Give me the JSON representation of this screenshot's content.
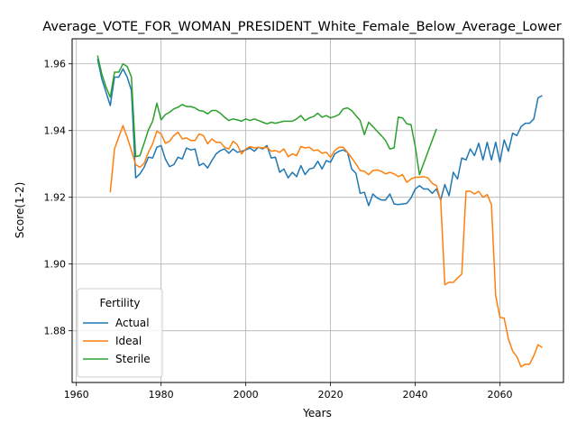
{
  "chart_data": {
    "type": "line",
    "title": "Average_VOTE_FOR_WOMAN_PRESIDENT_White_Female_Below_Average_Lower",
    "xlabel": "Years",
    "ylabel": "Score(1-2)",
    "xlim": [
      1959,
      2075
    ],
    "ylim": [
      1.8645,
      1.9675
    ],
    "x_ticks": [
      1960,
      1980,
      2000,
      2020,
      2040,
      2060
    ],
    "y_ticks": [
      1.88,
      1.9,
      1.92,
      1.94,
      1.96
    ],
    "y_tick_labels": [
      "1.88",
      "1.90",
      "1.92",
      "1.94",
      "1.96"
    ],
    "grid": true,
    "legend": {
      "title": "Fertility",
      "placement": "lower-left"
    },
    "series": [
      {
        "name": "Actual",
        "color": "#1f77b4",
        "points": [
          [
            1965,
            1.9615
          ],
          [
            1966,
            1.9555
          ],
          [
            1967,
            1.9515
          ],
          [
            1968,
            1.9475
          ],
          [
            1969,
            1.956
          ],
          [
            1970,
            1.956
          ],
          [
            1971,
            1.9585
          ],
          [
            1972,
            1.956
          ],
          [
            1973,
            1.952
          ],
          [
            1974,
            1.9258
          ],
          [
            1975,
            1.927
          ],
          [
            1976,
            1.929
          ],
          [
            1977,
            1.932
          ],
          [
            1978,
            1.9318
          ],
          [
            1979,
            1.935
          ],
          [
            1980,
            1.9355
          ],
          [
            1981,
            1.9315
          ],
          [
            1982,
            1.9292
          ],
          [
            1983,
            1.9298
          ],
          [
            1984,
            1.932
          ],
          [
            1985,
            1.9315
          ],
          [
            1986,
            1.9348
          ],
          [
            1987,
            1.9342
          ],
          [
            1988,
            1.9345
          ],
          [
            1989,
            1.9295
          ],
          [
            1990,
            1.9302
          ],
          [
            1991,
            1.9288
          ],
          [
            1992,
            1.931
          ],
          [
            1993,
            1.933
          ],
          [
            1994,
            1.934
          ],
          [
            1995,
            1.9345
          ],
          [
            1996,
            1.9332
          ],
          [
            1997,
            1.9345
          ],
          [
            1998,
            1.9335
          ],
          [
            1999,
            1.9338
          ],
          [
            2000,
            1.9342
          ],
          [
            2001,
            1.9348
          ],
          [
            2002,
            1.9338
          ],
          [
            2003,
            1.935
          ],
          [
            2004,
            1.9345
          ],
          [
            2005,
            1.9355
          ],
          [
            2006,
            1.9318
          ],
          [
            2007,
            1.932
          ],
          [
            2008,
            1.9275
          ],
          [
            2009,
            1.9285
          ],
          [
            2010,
            1.9258
          ],
          [
            2011,
            1.9275
          ],
          [
            2012,
            1.9262
          ],
          [
            2013,
            1.9295
          ],
          [
            2014,
            1.9268
          ],
          [
            2015,
            1.9285
          ],
          [
            2016,
            1.9288
          ],
          [
            2017,
            1.9308
          ],
          [
            2018,
            1.9285
          ],
          [
            2019,
            1.931
          ],
          [
            2020,
            1.9305
          ],
          [
            2021,
            1.933
          ],
          [
            2022,
            1.9338
          ],
          [
            2023,
            1.9342
          ],
          [
            2024,
            1.9335
          ],
          [
            2025,
            1.9285
          ],
          [
            2026,
            1.9272
          ],
          [
            2027,
            1.9212
          ],
          [
            2028,
            1.9215
          ],
          [
            2029,
            1.9175
          ],
          [
            2030,
            1.921
          ],
          [
            2031,
            1.9198
          ],
          [
            2032,
            1.9192
          ],
          [
            2033,
            1.9192
          ],
          [
            2034,
            1.921
          ],
          [
            2035,
            1.918
          ],
          [
            2036,
            1.9178
          ],
          [
            2037,
            1.918
          ],
          [
            2038,
            1.9182
          ],
          [
            2039,
            1.9198
          ],
          [
            2040,
            1.9225
          ],
          [
            2041,
            1.9235
          ],
          [
            2042,
            1.9225
          ],
          [
            2043,
            1.9225
          ],
          [
            2044,
            1.9212
          ],
          [
            2045,
            1.9225
          ],
          [
            2046,
            1.9192
          ],
          [
            2047,
            1.9238
          ],
          [
            2048,
            1.9205
          ],
          [
            2049,
            1.9275
          ],
          [
            2050,
            1.9255
          ],
          [
            2051,
            1.9318
          ],
          [
            2052,
            1.9312
          ],
          [
            2053,
            1.9345
          ],
          [
            2054,
            1.9325
          ],
          [
            2055,
            1.9362
          ],
          [
            2056,
            1.9312
          ],
          [
            2057,
            1.9365
          ],
          [
            2058,
            1.9312
          ],
          [
            2059,
            1.9365
          ],
          [
            2060,
            1.9305
          ],
          [
            2061,
            1.9372
          ],
          [
            2062,
            1.9338
          ],
          [
            2063,
            1.9392
          ],
          [
            2064,
            1.9385
          ],
          [
            2065,
            1.9412
          ],
          [
            2066,
            1.9422
          ],
          [
            2067,
            1.9422
          ],
          [
            2068,
            1.9435
          ],
          [
            2069,
            1.9498
          ],
          [
            2070,
            1.9505
          ]
        ]
      },
      {
        "name": "Ideal",
        "color": "#ff7f0e",
        "points": [
          [
            1968,
            1.9215
          ],
          [
            1969,
            1.9345
          ],
          [
            1970,
            1.938
          ],
          [
            1971,
            1.9415
          ],
          [
            1972,
            1.938
          ],
          [
            1973,
            1.934
          ],
          [
            1974,
            1.9298
          ],
          [
            1975,
            1.929
          ],
          [
            1976,
            1.9302
          ],
          [
            1977,
            1.9335
          ],
          [
            1978,
            1.936
          ],
          [
            1979,
            1.9398
          ],
          [
            1980,
            1.939
          ],
          [
            1981,
            1.9362
          ],
          [
            1982,
            1.9368
          ],
          [
            1983,
            1.9385
          ],
          [
            1984,
            1.9395
          ],
          [
            1985,
            1.9375
          ],
          [
            1986,
            1.9378
          ],
          [
            1987,
            1.937
          ],
          [
            1988,
            1.937
          ],
          [
            1989,
            1.939
          ],
          [
            1990,
            1.9385
          ],
          [
            1991,
            1.936
          ],
          [
            1992,
            1.9375
          ],
          [
            1993,
            1.9365
          ],
          [
            1994,
            1.9365
          ],
          [
            1995,
            1.935
          ],
          [
            1996,
            1.9345
          ],
          [
            1997,
            1.9368
          ],
          [
            1998,
            1.9358
          ],
          [
            1999,
            1.933
          ],
          [
            2000,
            1.9345
          ],
          [
            2001,
            1.9352
          ],
          [
            2002,
            1.9348
          ],
          [
            2003,
            1.935
          ],
          [
            2004,
            1.9348
          ],
          [
            2005,
            1.935
          ],
          [
            2006,
            1.9338
          ],
          [
            2007,
            1.934
          ],
          [
            2008,
            1.9335
          ],
          [
            2009,
            1.9345
          ],
          [
            2010,
            1.9322
          ],
          [
            2011,
            1.933
          ],
          [
            2012,
            1.9325
          ],
          [
            2013,
            1.9352
          ],
          [
            2014,
            1.9348
          ],
          [
            2015,
            1.935
          ],
          [
            2016,
            1.934
          ],
          [
            2017,
            1.9342
          ],
          [
            2018,
            1.9332
          ],
          [
            2019,
            1.9335
          ],
          [
            2020,
            1.932
          ],
          [
            2021,
            1.934
          ],
          [
            2022,
            1.935
          ],
          [
            2023,
            1.935
          ],
          [
            2024,
            1.9335
          ],
          [
            2025,
            1.9318
          ],
          [
            2026,
            1.93
          ],
          [
            2027,
            1.928
          ],
          [
            2028,
            1.9278
          ],
          [
            2029,
            1.9268
          ],
          [
            2030,
            1.928
          ],
          [
            2031,
            1.9282
          ],
          [
            2032,
            1.9278
          ],
          [
            2033,
            1.927
          ],
          [
            2034,
            1.9275
          ],
          [
            2035,
            1.927
          ],
          [
            2036,
            1.9262
          ],
          [
            2037,
            1.9268
          ],
          [
            2038,
            1.9245
          ],
          [
            2039,
            1.9255
          ],
          [
            2040,
            1.926
          ],
          [
            2041,
            1.926
          ],
          [
            2042,
            1.9262
          ],
          [
            2043,
            1.9258
          ],
          [
            2044,
            1.9242
          ],
          [
            2045,
            1.9235
          ],
          [
            2046,
            1.9192
          ],
          [
            2047,
            1.8938
          ],
          [
            2048,
            1.8945
          ],
          [
            2049,
            1.8945
          ],
          [
            2050,
            1.8958
          ],
          [
            2051,
            1.897
          ],
          [
            2052,
            1.9218
          ],
          [
            2053,
            1.9218
          ],
          [
            2054,
            1.921
          ],
          [
            2055,
            1.9218
          ],
          [
            2056,
            1.92
          ],
          [
            2057,
            1.9208
          ],
          [
            2058,
            1.9178
          ],
          [
            2059,
            1.8905
          ],
          [
            2060,
            1.884
          ],
          [
            2061,
            1.8838
          ],
          [
            2062,
            1.8775
          ],
          [
            2063,
            1.874
          ],
          [
            2064,
            1.8722
          ],
          [
            2065,
            1.8692
          ],
          [
            2066,
            1.87
          ],
          [
            2067,
            1.87
          ],
          [
            2068,
            1.8725
          ],
          [
            2069,
            1.8758
          ],
          [
            2070,
            1.875
          ]
        ]
      },
      {
        "name": "Sterile",
        "color": "#2ca02c",
        "points": [
          [
            1965,
            1.9625
          ],
          [
            1966,
            1.957
          ],
          [
            1967,
            1.953
          ],
          [
            1968,
            1.95
          ],
          [
            1969,
            1.9575
          ],
          [
            1970,
            1.9575
          ],
          [
            1971,
            1.96
          ],
          [
            1972,
            1.9592
          ],
          [
            1973,
            1.956
          ],
          [
            1974,
            1.9322
          ],
          [
            1975,
            1.9325
          ],
          [
            1976,
            1.9362
          ],
          [
            1977,
            1.9402
          ],
          [
            1978,
            1.9428
          ],
          [
            1979,
            1.9482
          ],
          [
            1980,
            1.9432
          ],
          [
            1981,
            1.9448
          ],
          [
            1982,
            1.9455
          ],
          [
            1983,
            1.9465
          ],
          [
            1984,
            1.947
          ],
          [
            1985,
            1.9478
          ],
          [
            1986,
            1.9472
          ],
          [
            1987,
            1.9472
          ],
          [
            1988,
            1.9468
          ],
          [
            1989,
            1.946
          ],
          [
            1990,
            1.9458
          ],
          [
            1991,
            1.945
          ],
          [
            1992,
            1.946
          ],
          [
            1993,
            1.946
          ],
          [
            1994,
            1.9452
          ],
          [
            1995,
            1.944
          ],
          [
            1996,
            1.943
          ],
          [
            1997,
            1.9435
          ],
          [
            1998,
            1.9432
          ],
          [
            1999,
            1.9428
          ],
          [
            2000,
            1.9435
          ],
          [
            2001,
            1.943
          ],
          [
            2002,
            1.9435
          ],
          [
            2003,
            1.943
          ],
          [
            2004,
            1.9425
          ],
          [
            2005,
            1.942
          ],
          [
            2006,
            1.9425
          ],
          [
            2007,
            1.9422
          ],
          [
            2008,
            1.9425
          ],
          [
            2009,
            1.9428
          ],
          [
            2010,
            1.9428
          ],
          [
            2011,
            1.9428
          ],
          [
            2012,
            1.9435
          ],
          [
            2013,
            1.9445
          ],
          [
            2014,
            1.943
          ],
          [
            2015,
            1.9438
          ],
          [
            2016,
            1.9442
          ],
          [
            2017,
            1.9452
          ],
          [
            2018,
            1.944
          ],
          [
            2019,
            1.9445
          ],
          [
            2020,
            1.9438
          ],
          [
            2021,
            1.9442
          ],
          [
            2022,
            1.9448
          ],
          [
            2023,
            1.9465
          ],
          [
            2024,
            1.9468
          ],
          [
            2025,
            1.946
          ],
          [
            2026,
            1.9445
          ],
          [
            2027,
            1.943
          ],
          [
            2028,
            1.9388
          ],
          [
            2029,
            1.9425
          ],
          [
            2030,
            1.9412
          ],
          [
            2031,
            1.9398
          ],
          [
            2032,
            1.9385
          ],
          [
            2033,
            1.937
          ],
          [
            2034,
            1.9345
          ],
          [
            2035,
            1.9348
          ],
          [
            2036,
            1.944
          ],
          [
            2037,
            1.9438
          ],
          [
            2038,
            1.942
          ],
          [
            2039,
            1.9418
          ],
          [
            2040,
            1.9352
          ],
          [
            2041,
            1.9268
          ],
          [
            2045,
            1.9405
          ]
        ]
      }
    ]
  }
}
